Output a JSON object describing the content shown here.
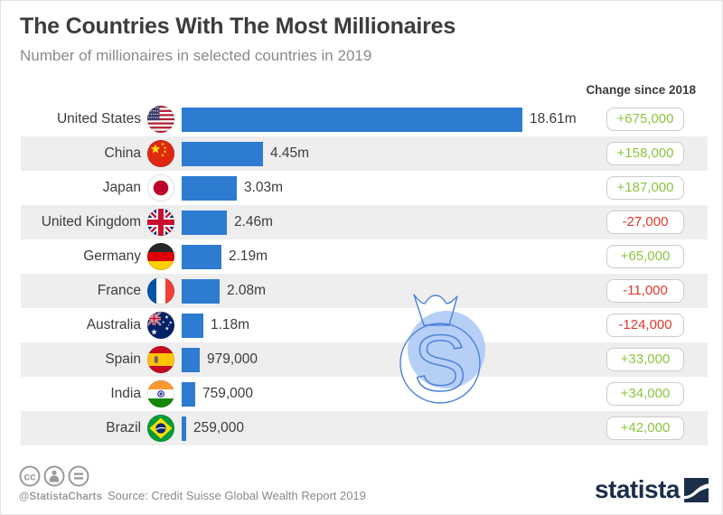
{
  "header": {
    "title": "The Countries With The Most Millionaires",
    "subtitle": "Number of millionaires in selected countries in 2019",
    "change_column_label": "Change since 2018"
  },
  "chart_data": {
    "type": "bar",
    "orientation": "horizontal",
    "title": "The Countries With The Most Millionaires",
    "subtitle": "Number of millionaires in selected countries in 2019",
    "categories": [
      "United States",
      "China",
      "Japan",
      "United Kingdom",
      "Germany",
      "France",
      "Australia",
      "Spain",
      "India",
      "Brazil"
    ],
    "values_millions": [
      18.61,
      4.45,
      3.03,
      2.46,
      2.19,
      2.08,
      1.18,
      0.979,
      0.759,
      0.259
    ],
    "value_labels": [
      "18.61m",
      "4.45m",
      "3.03m",
      "2.46m",
      "2.19m",
      "2.08m",
      "1.18m",
      "979,000",
      "759,000",
      "259,000"
    ],
    "change_since_2018": [
      "+675,000",
      "+158,000",
      "+187,000",
      "-27,000",
      "+65,000",
      "-11,000",
      "-124,000",
      "+33,000",
      "+34,000",
      "+42,000"
    ],
    "xlim": [
      0,
      18.61
    ],
    "grid": false,
    "legend": false
  },
  "rows": [
    {
      "country": "United States",
      "flag_icon": "us-flag-icon",
      "value_label": "18.61m",
      "value_millions": 18.61,
      "change_label": "+675,000",
      "change_direction": "up"
    },
    {
      "country": "China",
      "flag_icon": "cn-flag-icon",
      "value_label": "4.45m",
      "value_millions": 4.45,
      "change_label": "+158,000",
      "change_direction": "up"
    },
    {
      "country": "Japan",
      "flag_icon": "jp-flag-icon",
      "value_label": "3.03m",
      "value_millions": 3.03,
      "change_label": "+187,000",
      "change_direction": "up"
    },
    {
      "country": "United Kingdom",
      "flag_icon": "gb-flag-icon",
      "value_label": "2.46m",
      "value_millions": 2.46,
      "change_label": "-27,000",
      "change_direction": "down"
    },
    {
      "country": "Germany",
      "flag_icon": "de-flag-icon",
      "value_label": "2.19m",
      "value_millions": 2.19,
      "change_label": "+65,000",
      "change_direction": "up"
    },
    {
      "country": "France",
      "flag_icon": "fr-flag-icon",
      "value_label": "2.08m",
      "value_millions": 2.08,
      "change_label": "-11,000",
      "change_direction": "down"
    },
    {
      "country": "Australia",
      "flag_icon": "au-flag-icon",
      "value_label": "1.18m",
      "value_millions": 1.18,
      "change_label": "-124,000",
      "change_direction": "down"
    },
    {
      "country": "Spain",
      "flag_icon": "es-flag-icon",
      "value_label": "979,000",
      "value_millions": 0.979,
      "change_label": "+33,000",
      "change_direction": "up"
    },
    {
      "country": "India",
      "flag_icon": "in-flag-icon",
      "value_label": "759,000",
      "value_millions": 0.759,
      "change_label": "+34,000",
      "change_direction": "up"
    },
    {
      "country": "Brazil",
      "flag_icon": "br-flag-icon",
      "value_label": "259,000",
      "value_millions": 0.259,
      "change_label": "+42,000",
      "change_direction": "up"
    }
  ],
  "watermark": {
    "icon": "money-bag-icon",
    "letter": "S"
  },
  "footer": {
    "license_icons": [
      "cc-icon",
      "person-icon",
      "equals-icon"
    ],
    "license_handle": "@StatistaCharts",
    "source": "Source: Credit Suisse Global Wealth Report 2019",
    "brand": "statista"
  },
  "colors": {
    "bar_blue": "#2e7bd2",
    "positive_green": "#8bc53f",
    "negative_red": "#e0392e",
    "stripe_gray": "#eeeeee",
    "brand_navy": "#1b2e4a",
    "watermark_blue_fill": "#a9c7f4",
    "watermark_blue_stroke": "#4d82d8"
  }
}
